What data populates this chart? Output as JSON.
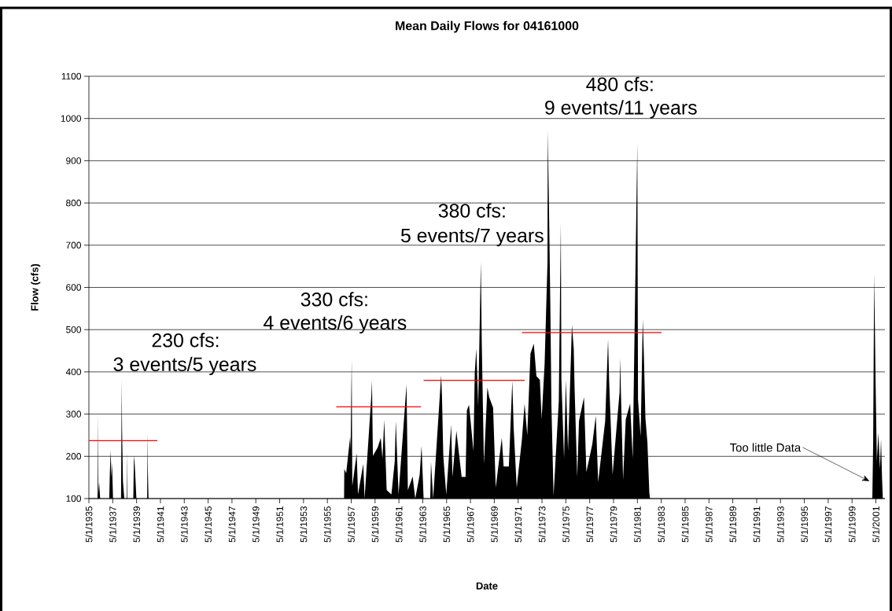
{
  "chart_data": {
    "type": "area",
    "title": "Mean Daily Flows for 04161000",
    "xlabel": "Date",
    "ylabel": "Flow (cfs)",
    "xlim": [
      "1935-05-01",
      "2002-02-01"
    ],
    "ylim": [
      100,
      1100
    ],
    "yticks": [
      100,
      200,
      300,
      400,
      500,
      600,
      700,
      800,
      900,
      1000,
      1100
    ],
    "xticks": [
      {
        "value": "1935-05-01",
        "label": "5/1/1935"
      },
      {
        "value": "1937-05-01",
        "label": "5/1/1937"
      },
      {
        "value": "1939-05-01",
        "label": "5/1/1939"
      },
      {
        "value": "1941-05-01",
        "label": "5/1/1941"
      },
      {
        "value": "1943-05-01",
        "label": "5/1/1943"
      },
      {
        "value": "1945-05-01",
        "label": "5/1/1945"
      },
      {
        "value": "1947-05-01",
        "label": "5/1/1947"
      },
      {
        "value": "1949-05-01",
        "label": "5/1/1949"
      },
      {
        "value": "1951-05-01",
        "label": "5/1/1951"
      },
      {
        "value": "1953-05-01",
        "label": "5/1/1953"
      },
      {
        "value": "1955-05-01",
        "label": "5/1/1955"
      },
      {
        "value": "1957-05-01",
        "label": "5/1/1957"
      },
      {
        "value": "1959-05-01",
        "label": "5/1/1959"
      },
      {
        "value": "1961-05-01",
        "label": "5/1/1961"
      },
      {
        "value": "1963-05-01",
        "label": "5/1/1963"
      },
      {
        "value": "1965-05-01",
        "label": "5/1/1965"
      },
      {
        "value": "1967-05-01",
        "label": "5/1/1967"
      },
      {
        "value": "1969-05-01",
        "label": "5/1/1969"
      },
      {
        "value": "1971-05-01",
        "label": "5/1/1971"
      },
      {
        "value": "1973-05-01",
        "label": "5/1/1973"
      },
      {
        "value": "1975-05-01",
        "label": "5/1/1975"
      },
      {
        "value": "1977-05-01",
        "label": "5/1/1977"
      },
      {
        "value": "1979-05-01",
        "label": "5/1/1979"
      },
      {
        "value": "1981-05-01",
        "label": "5/1/1981"
      },
      {
        "value": "1983-05-01",
        "label": "5/1/1983"
      },
      {
        "value": "1985-05-01",
        "label": "5/1/1985"
      },
      {
        "value": "1987-05-01",
        "label": "5/1/1987"
      },
      {
        "value": "1989-05-01",
        "label": "5/1/1989"
      },
      {
        "value": "1991-05-01",
        "label": "5/1/1991"
      },
      {
        "value": "1993-05-01",
        "label": "5/1/1993"
      },
      {
        "value": "1995-05-01",
        "label": "5/1/1995"
      },
      {
        "value": "1997-05-01",
        "label": "5/1/1997"
      },
      {
        "value": "1999-05-01",
        "label": "5/1/1999"
      },
      {
        "value": "2001-05-01",
        "label": "5/1/2001"
      }
    ],
    "grid": "y",
    "series": [
      {
        "color": "#000000",
        "x": [
          "1936-01-20",
          "1936-02-01",
          "1936-02-12",
          "1936-03-10",
          "1936-04-10",
          "1937-01-15",
          "1937-02-01",
          "1937-03-01",
          "1937-03-20",
          "1937-04-10",
          "1937-05-10",
          "1938-01-10",
          "1938-02-01",
          "1938-02-10",
          "1938-03-10",
          "1938-04-20",
          "1938-07-01",
          "1938-07-10",
          "1938-07-20",
          "1939-01-20",
          "1939-02-10",
          "1939-03-01",
          "1939-04-01",
          "1939-04-25",
          "1940-03-20",
          "1940-04-01",
          "1940-04-10",
          "1940-05-01",
          "1948-01-01",
          "1956-09-24",
          "1956-10-01",
          "1956-11-28",
          "1957-03-28",
          "1957-04-12",
          "1957-05-15",
          "1957-06-03",
          "1957-10-16",
          "1957-11-25",
          "1958-05-05",
          "1958-06-14",
          "1959-01-08",
          "1959-01-26",
          "1959-02-24",
          "1959-07-20",
          "1959-10-23",
          "1959-12-13",
          "1960-02-06",
          "1960-04-20",
          "1960-09-13",
          "1960-12-24",
          "1961-01-26",
          "1961-04-20",
          "1961-12-20",
          "1962-01-30",
          "1962-06-25",
          "1962-09-13",
          "1963-01-26",
          "1963-03-25",
          "1963-05-27",
          "1963-12-16",
          "1964-01-08",
          "1964-03-14",
          "1964-11-14",
          "1964-12-10",
          "1965-01-19",
          "1965-04-20",
          "1965-09-17",
          "1965-10-27",
          "1966-02-24",
          "1966-08-04",
          "1966-12-02",
          "1967-01-12",
          "1967-03-18",
          "1967-07-31",
          "1967-09-09",
          "1967-10-27",
          "1967-12-24",
          "1968-03-14",
          "1968-04-12",
          "1968-06-17",
          "1968-10-01",
          "1968-11-25",
          "1969-03-25",
          "1969-06-14",
          "1969-12-16",
          "1970-02-10",
          "1970-07-20",
          "1970-11-03",
          "1970-12-13",
          "1971-03-18",
          "1971-08-25",
          "1971-11-14",
          "1972-02-03",
          "1972-05-12",
          "1972-08-22",
          "1972-11-10",
          "1973-02-24",
          "1973-04-20",
          "1973-07-20",
          "1973-10-16",
          "1973-10-23",
          "1973-11-25",
          "1974-01-12",
          "1974-02-14",
          "1974-04-20",
          "1974-09-27",
          "1974-11-28",
          "1974-12-16",
          "1975-03-07",
          "1975-05-01",
          "1975-07-06",
          "1975-11-03",
          "1975-12-28",
          "1976-01-23",
          "1976-04-13",
          "1976-06-07",
          "1976-11-07",
          "1977-01-19",
          "1977-07-20",
          "1977-11-03",
          "1978-01-15",
          "1978-08-18",
          "1978-11-14",
          "1978-12-16",
          "1979-04-02",
          "1979-08-15",
          "1979-11-03",
          "1979-11-17",
          "1980-02-17",
          "1980-05-08",
          "1980-09-20",
          "1980-12-09",
          "1981-04-28",
          "1981-05-20",
          "1981-08-08",
          "1981-10-12",
          "1981-11-14",
          "1982-01-01",
          "1982-03-04",
          "1982-05-01",
          "1982-05-23",
          "1992-01-01",
          "2001-01-12",
          "2001-02-06",
          "2001-03-10",
          "2001-04-20",
          "2001-05-30",
          "2001-07-16",
          "2001-09-02",
          "2001-10-05",
          "2001-11-07",
          "2001-11-29"
        ],
        "values": [
          100,
          301,
          110,
          139,
          100,
          100,
          160,
          215,
          150,
          184,
          100,
          100,
          382,
          268,
          140,
          100,
          100,
          212,
          100,
          100,
          202,
          186,
          140,
          100,
          100,
          259,
          169,
          100,
          null,
          100,
          170,
          160,
          246,
          214,
          430,
          130,
          207,
          110,
          182,
          100,
          345,
          380,
          201,
          221,
          244,
          194,
          286,
          120,
          110,
          188,
          284,
          110,
          370,
          120,
          152,
          100,
          156,
          225,
          100,
          100,
          187,
          100,
          392,
          343,
          201,
          110,
          275,
          151,
          260,
          151,
          151,
          309,
          322,
          213,
          396,
          455,
          319,
          660,
          466,
          182,
          363,
          340,
          315,
          126,
          244,
          176,
          176,
          379,
          269,
          126,
          241,
          325,
          250,
          443,
          467,
          390,
          381,
          288,
          420,
          660,
          973,
          821,
          551,
          318,
          107,
          331,
          753,
          381,
          194,
          381,
          213,
          511,
          455,
          362,
          151,
          284,
          340,
          163,
          229,
          296,
          139,
          284,
          477,
          381,
          157,
          281,
          353,
          433,
          145,
          287,
          325,
          194,
          941,
          334,
          247,
          525,
          443,
          291,
          232,
          114,
          100,
          null,
          100,
          230,
          632,
          387,
          188,
          256,
          169,
          241,
          145,
          100
        ]
      },
      {
        "type": "line",
        "color": "#ff0000",
        "x": [
          "1935-05-01",
          "1941-01-25"
        ],
        "values": [
          237,
          237
        ]
      },
      {
        "type": "line",
        "color": "#ff0000",
        "x": [
          "1956-01-30",
          "1963-03-07"
        ],
        "values": [
          317,
          317
        ]
      },
      {
        "type": "line",
        "color": "#ff0000",
        "x": [
          "1963-05-27",
          "1971-11-18"
        ],
        "values": [
          380,
          380
        ]
      },
      {
        "type": "line",
        "color": "#ff0000",
        "x": [
          "1971-08-25",
          "1983-05-10"
        ],
        "values": [
          493,
          493
        ]
      }
    ],
    "annotations": [
      "230 cfs:",
      "3 events/5 years",
      "330 cfs:",
      "4 events/6 years",
      "380 cfs:",
      "5 events/7 years",
      "480 cfs:",
      "9 events/11 years",
      {
        "text": "Too little Data",
        "x": "2000-10-20",
        "y": 141
      }
    ]
  }
}
